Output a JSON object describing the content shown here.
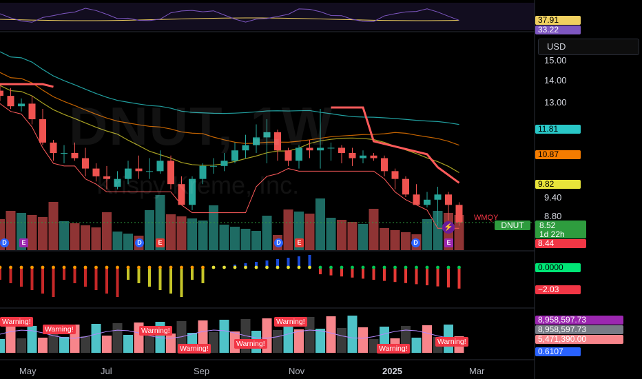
{
  "symbol": {
    "ticker": "DNUT",
    "watermark": "DNUT, 1W",
    "company": "Krispy Kreme, Inc.",
    "currency": "USD",
    "countdown": "1d 22h",
    "indicator_tag": "WMQY"
  },
  "price_axis": {
    "ticks": [
      "15.00",
      "14.00",
      "13.00",
      "9.40",
      "8.80"
    ],
    "labels": {
      "ma_cyan": "11.81",
      "ma_orange": "10.87",
      "ma_yellow": "9.82",
      "last_price": "8.52",
      "low_price": "8.44"
    }
  },
  "rsi_panel": {
    "values": [
      "37.91",
      "33.22"
    ]
  },
  "macd_panel": {
    "values": [
      "0.0000",
      "−2.03"
    ]
  },
  "volume_panel": {
    "values": [
      "8,958,597.73",
      "8,958,597.73",
      "5,471,390.00",
      "0.6107"
    ],
    "warning_label": "Warning!"
  },
  "time_axis": [
    "May",
    "Jul",
    "Sep",
    "Nov",
    "2025",
    "Mar"
  ],
  "events": {
    "dividend": "D",
    "earnings": "E"
  },
  "colors": {
    "up": "#26a69a",
    "down": "#ef5350",
    "trail": "#ff5b5b",
    "ma_cyan": "#29c7c7",
    "ma_orange": "#f57c00",
    "ma_yellow": "#d1c82a",
    "rsi_line": "#7e57c2",
    "rsi_ma": "#f0d060"
  },
  "chart_data": {
    "type": "candlestick",
    "x": [
      "Apr-19",
      "Apr-26",
      "May-03",
      "May-10",
      "May-17",
      "May-24",
      "May-31",
      "Jun-07",
      "Jun-14",
      "Jun-21",
      "Jun-28",
      "Jul-05",
      "Jul-12",
      "Jul-19",
      "Jul-26",
      "Aug-02",
      "Aug-09",
      "Aug-16",
      "Aug-23",
      "Aug-30",
      "Sep-06",
      "Sep-13",
      "Sep-20",
      "Sep-27",
      "Oct-04",
      "Oct-11",
      "Oct-18",
      "Oct-25",
      "Nov-01",
      "Nov-08",
      "Nov-15",
      "Nov-22",
      "Nov-29",
      "Dec-06",
      "Dec-13",
      "Dec-20",
      "Dec-27",
      "Jan-03",
      "Jan-10",
      "Jan-17",
      "Jan-24",
      "Jan-31",
      "Feb-07",
      "Feb-14"
    ],
    "series": [
      {
        "name": "open",
        "values": [
          13.6,
          13.4,
          13.0,
          13.1,
          12.5,
          11.6,
          11.2,
          11.2,
          11.0,
          10.6,
          10.3,
          9.9,
          10.2,
          10.6,
          10.5,
          10.5,
          10.9,
          10.0,
          9.2,
          10.2,
          10.7,
          10.7,
          10.9,
          11.3,
          11.5,
          11.8,
          12.0,
          11.3,
          10.9,
          11.4,
          11.3,
          11.4,
          11.4,
          11.2,
          11.0,
          11.1,
          11.0,
          10.5,
          10.2,
          9.6,
          9.2,
          9.4,
          9.6,
          9.2
        ]
      },
      {
        "name": "high",
        "values": [
          13.8,
          13.7,
          13.3,
          13.4,
          12.9,
          11.7,
          11.5,
          11.6,
          11.4,
          10.8,
          10.7,
          10.5,
          10.9,
          11.1,
          11.0,
          11.3,
          11.1,
          10.3,
          10.3,
          10.8,
          11.0,
          11.2,
          11.6,
          11.9,
          12.3,
          12.5,
          12.1,
          11.4,
          11.5,
          11.7,
          12.9,
          11.6,
          11.5,
          11.4,
          11.3,
          11.2,
          11.1,
          10.6,
          10.3,
          10.0,
          9.7,
          9.9,
          9.7,
          9.3
        ]
      },
      {
        "name": "low",
        "values": [
          13.2,
          12.9,
          12.8,
          12.3,
          11.5,
          10.9,
          10.8,
          10.9,
          10.3,
          10.1,
          9.8,
          9.8,
          10.0,
          10.2,
          10.2,
          10.4,
          9.8,
          9.3,
          9.0,
          10.0,
          10.4,
          10.5,
          10.8,
          11.0,
          11.2,
          10.8,
          10.9,
          10.7,
          10.6,
          11.0,
          10.6,
          10.9,
          10.8,
          10.7,
          10.8,
          10.9,
          10.3,
          9.8,
          9.5,
          9.3,
          9.1,
          8.4,
          8.6,
          8.4
        ]
      },
      {
        "name": "close",
        "values": [
          13.4,
          13.0,
          13.1,
          12.5,
          11.6,
          11.2,
          11.2,
          11.0,
          10.6,
          10.3,
          10.2,
          10.2,
          10.6,
          10.5,
          10.5,
          10.9,
          10.0,
          9.2,
          10.2,
          10.7,
          10.7,
          10.9,
          11.3,
          11.5,
          11.8,
          12.0,
          11.3,
          10.9,
          11.4,
          11.3,
          11.4,
          11.4,
          11.2,
          11.0,
          11.1,
          11.0,
          10.5,
          10.2,
          9.6,
          9.2,
          9.4,
          9.6,
          9.2,
          8.52
        ]
      }
    ],
    "ylim": [
      8.2,
      15.5
    ]
  }
}
